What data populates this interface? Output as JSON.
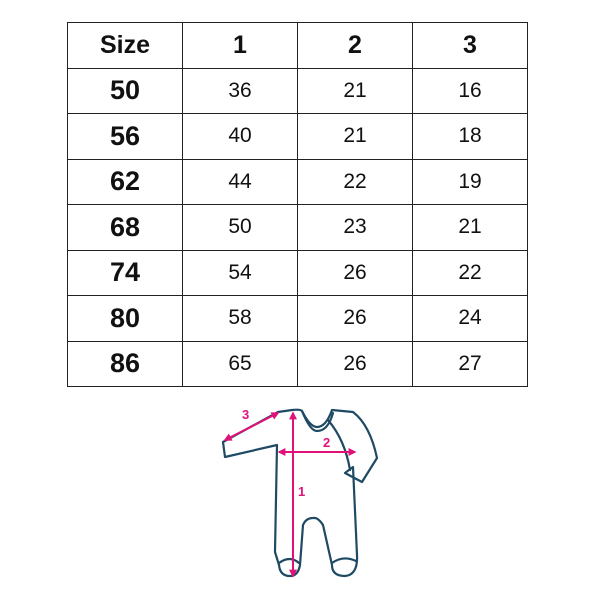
{
  "table": {
    "headers": [
      "Size",
      "1",
      "2",
      "3"
    ],
    "rows": [
      [
        "50",
        "36",
        "21",
        "16"
      ],
      [
        "56",
        "40",
        "21",
        "18"
      ],
      [
        "62",
        "44",
        "22",
        "19"
      ],
      [
        "68",
        "50",
        "23",
        "21"
      ],
      [
        "74",
        "54",
        "26",
        "22"
      ],
      [
        "80",
        "58",
        "26",
        "24"
      ],
      [
        "86",
        "65",
        "26",
        "27"
      ]
    ]
  },
  "diagram": {
    "labels": {
      "length": "1",
      "chest": "2",
      "sleeve": "3"
    },
    "colors": {
      "outline": "#1f4a63",
      "measure": "#e0127a"
    }
  }
}
